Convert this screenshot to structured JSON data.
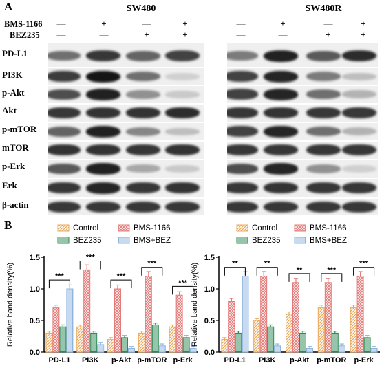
{
  "panel_a": {
    "letter": "A",
    "groups": [
      {
        "title": "SW480"
      },
      {
        "title": "SW480R"
      }
    ],
    "conditions": [
      {
        "label": "BMS-1166",
        "signs": [
          "—",
          "+",
          "—",
          "+"
        ]
      },
      {
        "label": "BEZ235",
        "signs": [
          "—",
          "—",
          "+",
          "+"
        ]
      }
    ],
    "proteins": [
      "PD-L1",
      "PI3K",
      "p-Akt",
      "Akt",
      "p-mTOR",
      "mTOR",
      "p-Erk",
      "Erk",
      "β-actin"
    ],
    "band_intensity": {
      "SW480": [
        [
          0.55,
          0.8,
          0.6,
          0.75
        ],
        [
          0.78,
          0.95,
          0.55,
          0.12
        ],
        [
          0.7,
          0.9,
          0.4,
          0.15
        ],
        [
          0.8,
          0.82,
          0.82,
          0.85
        ],
        [
          0.6,
          0.9,
          0.45,
          0.2
        ],
        [
          0.82,
          0.82,
          0.8,
          0.82
        ],
        [
          0.65,
          0.9,
          0.3,
          0.15
        ],
        [
          0.8,
          0.88,
          0.8,
          0.82
        ],
        [
          0.8,
          0.8,
          0.8,
          0.8
        ]
      ],
      "SW480R": [
        [
          0.5,
          0.9,
          0.65,
          0.85
        ],
        [
          0.75,
          0.88,
          0.5,
          0.2
        ],
        [
          0.75,
          0.88,
          0.55,
          0.25
        ],
        [
          0.8,
          0.82,
          0.8,
          0.8
        ],
        [
          0.75,
          0.88,
          0.55,
          0.25
        ],
        [
          0.8,
          0.8,
          0.8,
          0.8
        ],
        [
          0.7,
          0.88,
          0.4,
          0.12
        ],
        [
          0.8,
          0.82,
          0.8,
          0.8
        ],
        [
          0.8,
          0.8,
          0.8,
          0.8
        ]
      ]
    }
  },
  "panel_b": {
    "letter": "B",
    "colors": {
      "Control": "#E8A85A",
      "BMS-1166": "#E47B7B",
      "BEZ235": "#2E8B57",
      "BMS+BEZ": "#8FB5DF"
    }
  },
  "chart_data": [
    {
      "type": "bar",
      "categories": [
        "PD-L1",
        "PI3K",
        "p-Akt",
        "p-mTOR",
        "p-Erk"
      ],
      "ylabel": "Relative band density(%)",
      "ylim": [
        0,
        1.5
      ],
      "yticks": [
        "0.0",
        "0.5",
        "1.0",
        "1.5"
      ],
      "legend": [
        "Control",
        "BEZ235",
        "BMS-1166",
        "BMS+BEZ"
      ],
      "series": [
        {
          "name": "Control",
          "values": [
            0.3,
            0.4,
            0.2,
            0.3,
            0.4
          ]
        },
        {
          "name": "BMS-1166",
          "values": [
            0.7,
            1.3,
            1.0,
            1.2,
            0.9
          ]
        },
        {
          "name": "BEZ235",
          "values": [
            0.4,
            0.3,
            0.23,
            0.43,
            0.23
          ]
        },
        {
          "name": "BMS+BEZ",
          "values": [
            1.0,
            0.12,
            0.06,
            0.1,
            0.06
          ]
        }
      ],
      "significance": [
        "***",
        "***",
        "***",
        "***",
        "***"
      ]
    },
    {
      "type": "bar",
      "categories": [
        "PD-L1",
        "PI3K",
        "p-Akt",
        "p-mTOR",
        "p-Erk"
      ],
      "ylabel": "Relative band density(%)",
      "ylim": [
        0,
        1.5
      ],
      "yticks": [
        "0.0",
        "0.5",
        "1.0",
        "1.5"
      ],
      "legend": [
        "Control",
        "BEZ235",
        "BMS-1166",
        "BMS+BEZ"
      ],
      "series": [
        {
          "name": "Control",
          "values": [
            0.2,
            0.5,
            0.6,
            0.7,
            0.7
          ]
        },
        {
          "name": "BMS-1166",
          "values": [
            0.8,
            1.2,
            1.1,
            1.1,
            1.2
          ]
        },
        {
          "name": "BEZ235",
          "values": [
            0.3,
            0.4,
            0.3,
            0.3,
            0.23
          ]
        },
        {
          "name": "BMS+BEZ",
          "values": [
            1.2,
            0.1,
            0.06,
            0.1,
            0.06
          ]
        }
      ],
      "significance": [
        "**",
        "**",
        "**",
        "***",
        "***"
      ]
    }
  ]
}
